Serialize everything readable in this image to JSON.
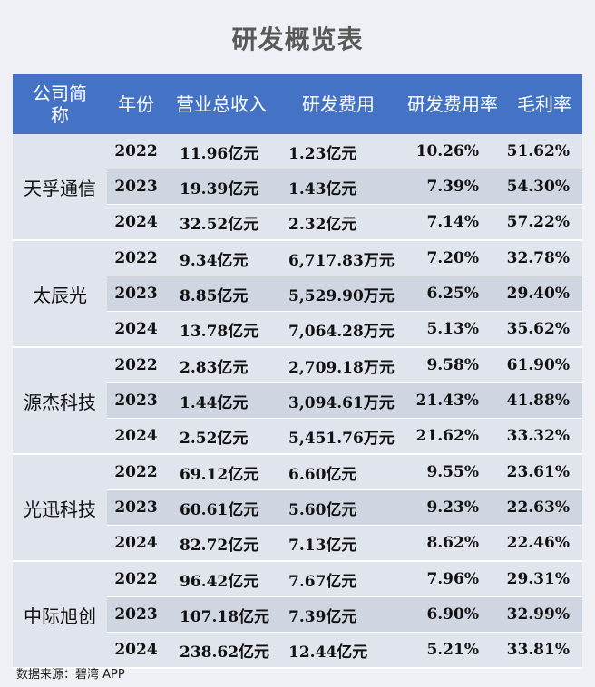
{
  "title": "研发概览表",
  "headers": [
    "公司简称",
    "年份",
    "营业总收入",
    "研发费用",
    "研发费用率",
    "毛利率"
  ],
  "companies": [
    {
      "name": "天孚通信",
      "rows": [
        {
          "year": "2022",
          "revenue": "11.96亿元",
          "rd": "1.23亿元",
          "rd_rate": "10.26%",
          "gross_margin": "51.62%"
        },
        {
          "year": "2023",
          "revenue": "19.39亿元",
          "rd": "1.43亿元",
          "rd_rate": "7.39%",
          "gross_margin": "54.30%"
        },
        {
          "year": "2024",
          "revenue": "32.52亿元",
          "rd": "2.32亿元",
          "rd_rate": "7.14%",
          "gross_margin": "57.22%"
        }
      ]
    },
    {
      "name": "太辰光",
      "rows": [
        {
          "year": "2022",
          "revenue": "9.34亿元",
          "rd": "6,717.83万元",
          "rd_rate": "7.20%",
          "gross_margin": "32.78%"
        },
        {
          "year": "2023",
          "revenue": "8.85亿元",
          "rd": "5,529.90万元",
          "rd_rate": "6.25%",
          "gross_margin": "29.40%"
        },
        {
          "year": "2024",
          "revenue": "13.78亿元",
          "rd": "7,064.28万元",
          "rd_rate": "5.13%",
          "gross_margin": "35.62%"
        }
      ]
    },
    {
      "name": "源杰科技",
      "rows": [
        {
          "year": "2022",
          "revenue": "2.83亿元",
          "rd": "2,709.18万元",
          "rd_rate": "9.58%",
          "gross_margin": "61.90%"
        },
        {
          "year": "2023",
          "revenue": "1.44亿元",
          "rd": "3,094.61万元",
          "rd_rate": "21.43%",
          "gross_margin": "41.88%"
        },
        {
          "year": "2024",
          "revenue": "2.52亿元",
          "rd": "5,451.76万元",
          "rd_rate": "21.62%",
          "gross_margin": "33.32%"
        }
      ]
    },
    {
      "name": "光迅科技",
      "rows": [
        {
          "year": "2022",
          "revenue": "69.12亿元",
          "rd": "6.60亿元",
          "rd_rate": "9.55%",
          "gross_margin": "23.61%"
        },
        {
          "year": "2023",
          "revenue": "60.61亿元",
          "rd": "5.60亿元",
          "rd_rate": "9.23%",
          "gross_margin": "22.63%"
        },
        {
          "year": "2024",
          "revenue": "82.72亿元",
          "rd": "7.13亿元",
          "rd_rate": "8.62%",
          "gross_margin": "22.46%"
        }
      ]
    },
    {
      "name": "中际旭创",
      "rows": [
        {
          "year": "2022",
          "revenue": "96.42亿元",
          "rd": "7.67亿元",
          "rd_rate": "7.96%",
          "gross_margin": "29.31%"
        },
        {
          "year": "2023",
          "revenue": "107.18亿元",
          "rd": "7.39亿元",
          "rd_rate": "6.90%",
          "gross_margin": "32.99%"
        },
        {
          "year": "2024",
          "revenue": "238.62亿元",
          "rd": "12.44亿元",
          "rd_rate": "5.21%",
          "gross_margin": "33.81%"
        }
      ]
    }
  ],
  "source": "数据来源：碧湾 APP"
}
